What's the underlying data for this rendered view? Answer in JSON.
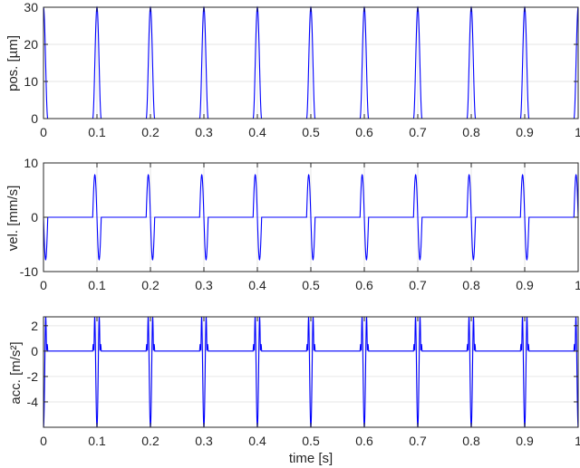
{
  "figure": {
    "background": "#ffffff"
  },
  "chart_data": [
    {
      "type": "line",
      "ylabel": "pos. [µm]",
      "xlabel": "",
      "xlim": [
        0,
        1
      ],
      "ylim": [
        0,
        30
      ],
      "xticks": [
        0,
        0.1,
        0.2,
        0.3,
        0.4,
        0.5,
        0.6,
        0.7,
        0.8,
        0.9,
        1
      ],
      "xtick_labels": [
        "0",
        "0.1",
        "0.2",
        "0.3",
        "0.4",
        "0.5",
        "0.6",
        "0.7",
        "0.8",
        "0.9",
        "1"
      ],
      "yticks": [
        0,
        10,
        20,
        30
      ],
      "ytick_labels": [
        "0",
        "10",
        "20",
        "30"
      ],
      "grid": true,
      "series": [
        {
          "color": "#0000ff",
          "kind": "pulse-position",
          "period": 0.1,
          "peak": 30,
          "pulse_halfwidth": 0.008
        }
      ]
    },
    {
      "type": "line",
      "ylabel": "vel. [mm/s]",
      "xlabel": "",
      "xlim": [
        0,
        1
      ],
      "ylim": [
        -10,
        10
      ],
      "xticks": [
        0,
        0.1,
        0.2,
        0.3,
        0.4,
        0.5,
        0.6,
        0.7,
        0.8,
        0.9,
        1
      ],
      "xtick_labels": [
        "0",
        "0.1",
        "0.2",
        "0.3",
        "0.4",
        "0.5",
        "0.6",
        "0.7",
        "0.8",
        "0.9",
        "1"
      ],
      "yticks": [
        -10,
        0,
        10
      ],
      "ytick_labels": [
        "-10",
        "0",
        "10"
      ],
      "grid": true,
      "series": [
        {
          "color": "#0000ff",
          "kind": "pulse-velocity",
          "period": 0.1,
          "peak": 7.8,
          "pulse_halfwidth": 0.008
        }
      ]
    },
    {
      "type": "line",
      "ylabel": "acc.  [m/s²]",
      "xlabel": "time [s]",
      "xlim": [
        0,
        1
      ],
      "ylim": [
        -6,
        2.7
      ],
      "xticks": [
        0,
        0.1,
        0.2,
        0.3,
        0.4,
        0.5,
        0.6,
        0.7,
        0.8,
        0.9,
        1
      ],
      "xtick_labels": [
        "0",
        "0.1",
        "0.2",
        "0.3",
        "0.4",
        "0.5",
        "0.6",
        "0.7",
        "0.8",
        "0.9",
        "1"
      ],
      "yticks": [
        -4,
        -2,
        0,
        2
      ],
      "ytick_labels": [
        "-4",
        "-2",
        "0",
        "2"
      ],
      "grid": true,
      "series": [
        {
          "color": "#0000ff",
          "kind": "pulse-acceleration",
          "period": 0.1,
          "peak": 2.7,
          "trough": -6,
          "pulse_halfwidth": 0.008
        }
      ]
    }
  ]
}
